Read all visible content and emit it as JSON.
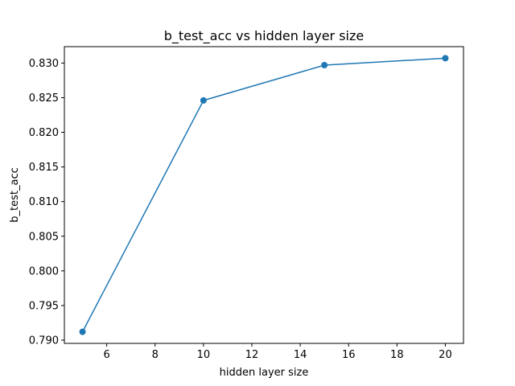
{
  "chart_data": {
    "type": "line",
    "title": "b_test_acc vs hidden layer size",
    "xlabel": "hidden layer size",
    "ylabel": "b_test_acc",
    "x": [
      5,
      10,
      15,
      20
    ],
    "series": [
      {
        "values": [
          0.7912,
          0.8246,
          0.8297,
          0.8307
        ],
        "color": "#1f77b4",
        "marker": "circle"
      }
    ],
    "xlim": [
      4.25,
      20.75
    ],
    "ylim": [
      0.78953,
      0.83237
    ],
    "xticks": [
      6,
      8,
      10,
      12,
      14,
      16,
      18,
      20
    ],
    "xtick_labels": [
      "6",
      "8",
      "10",
      "12",
      "14",
      "16",
      "18",
      "20"
    ],
    "yticks": [
      0.79,
      0.795,
      0.8,
      0.805,
      0.81,
      0.815,
      0.82,
      0.825,
      0.83
    ],
    "ytick_labels": [
      "0.790",
      "0.795",
      "0.800",
      "0.805",
      "0.810",
      "0.815",
      "0.820",
      "0.825",
      "0.830"
    ],
    "grid": false,
    "legend": false
  }
}
